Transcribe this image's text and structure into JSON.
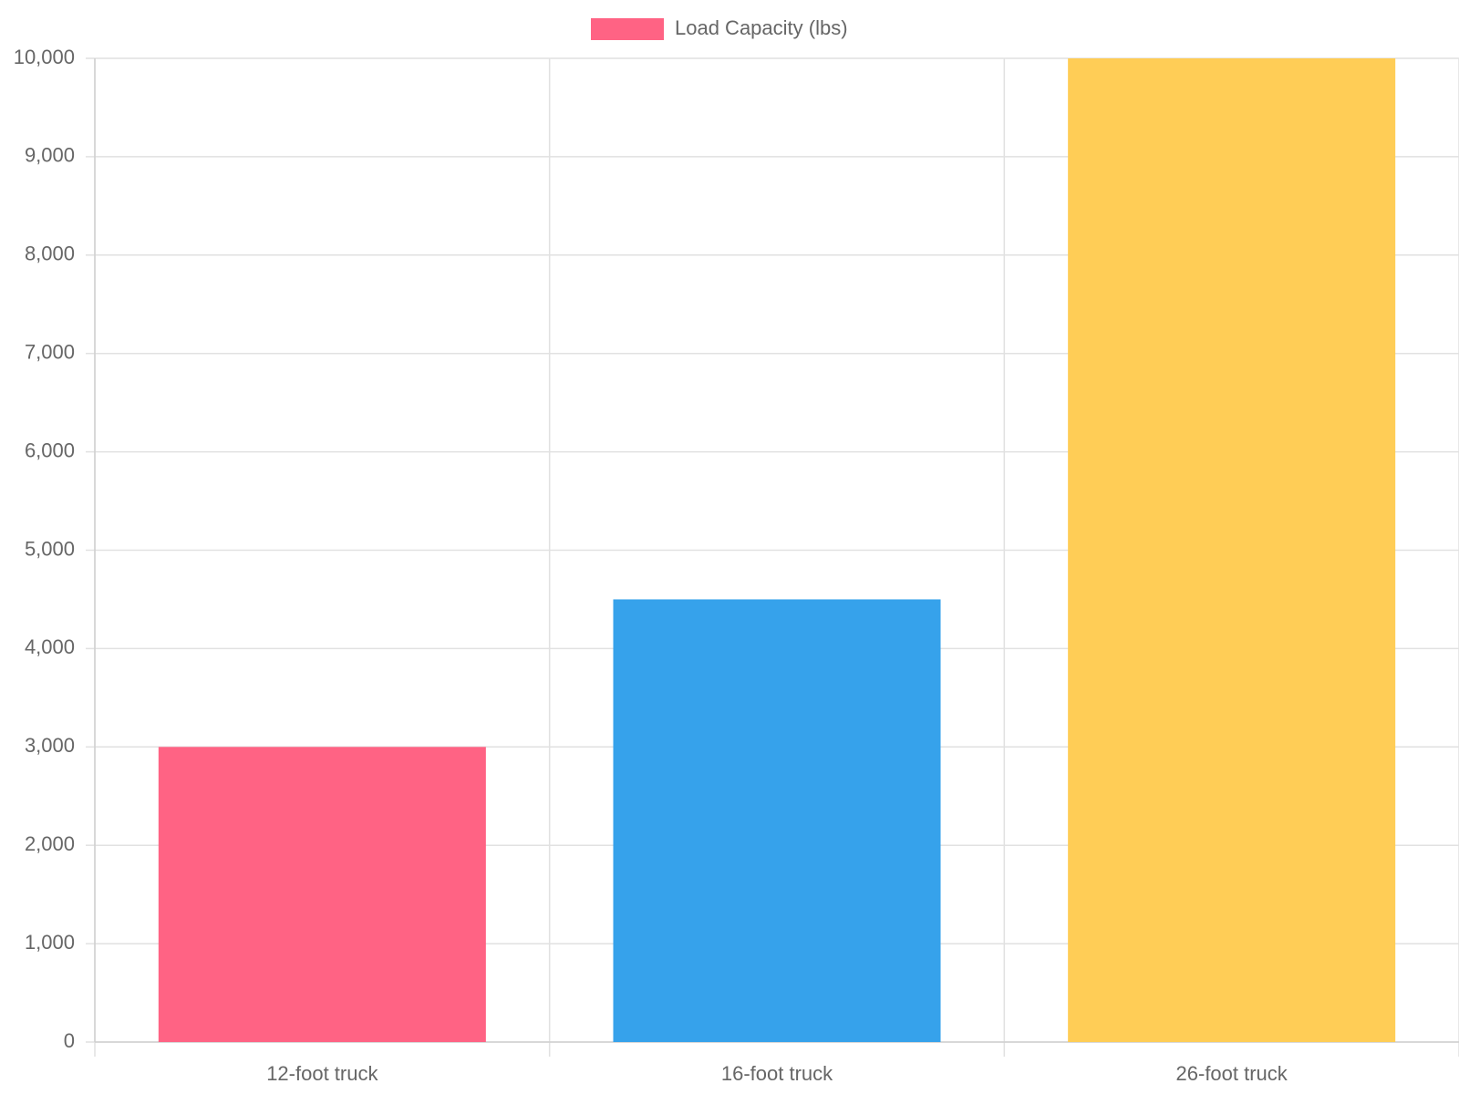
{
  "chart_data": {
    "type": "bar",
    "categories": [
      "12-foot truck",
      "16-foot truck",
      "26-foot truck"
    ],
    "series": [
      {
        "name": "Load Capacity (lbs)",
        "color": "#ff6384",
        "colors": [
          "#ff6384",
          "#36a2eb",
          "#ffcd56"
        ],
        "values": [
          3000,
          4500,
          10000
        ]
      }
    ],
    "ylim": [
      0,
      10000
    ],
    "yticks": [
      0,
      {
        "value": 1000,
        "label": "1,000"
      },
      {
        "value": 2000,
        "label": "2,000"
      },
      {
        "value": 3000,
        "label": "3,000"
      },
      {
        "value": 4000,
        "label": "4,000"
      },
      {
        "value": 5000,
        "label": "5,000"
      },
      {
        "value": 6000,
        "label": "6,000"
      },
      {
        "value": 7000,
        "label": "7,000"
      },
      {
        "value": 8000,
        "label": "8,000"
      },
      {
        "value": 9000,
        "label": "9,000"
      },
      {
        "value": 10000,
        "label": "10,000"
      }
    ],
    "grid": true,
    "legend": "top"
  }
}
